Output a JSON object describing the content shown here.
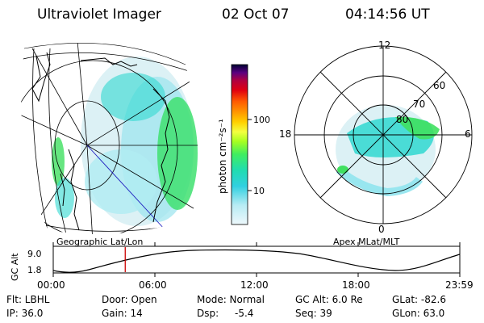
{
  "header": {
    "instrument": "Ultraviolet Imager",
    "date": "02 Oct 07",
    "time": "04:14:56 UT"
  },
  "geo_panel": {
    "label": "Geographic Lat/Lon"
  },
  "apex_panel": {
    "label": "Apex MLat/MLT",
    "mlt_labels": [
      "12",
      "18",
      "6",
      "0"
    ],
    "lat_labels": [
      "60",
      "70",
      "80"
    ]
  },
  "colorbar": {
    "unit_label": "photon cm⁻²s⁻¹",
    "tick_labels": [
      "100",
      "10"
    ],
    "colors": [
      "#000033",
      "#3a006a",
      "#7a0070",
      "#b00040",
      "#e00010",
      "#ff5a00",
      "#ff9900",
      "#ffd000",
      "#f4ff40",
      "#a8ff20",
      "#40ee60",
      "#20dcb0",
      "#30d0e0",
      "#90e8f0",
      "#e0f8fc"
    ]
  },
  "altitude_plot": {
    "ylabel": "GC Alt",
    "y_ticks": [
      "9.0",
      "1.8"
    ],
    "x_ticks": [
      "00:00",
      "06:00",
      "12:00",
      "18:00",
      "23:59"
    ],
    "current_time_hours": 4.25
  },
  "info": {
    "flt": "Flt: LBHL",
    "ip": "IP: 36.0",
    "door": "Door: Open",
    "gain": "Gain: 14",
    "mode": "Mode: Normal",
    "dsp": "Dsp:",
    "dsp_value": "-5.4",
    "gc_alt": "GC Alt: 6.0 Re",
    "seq": "Seq: 39",
    "glat": "GLat: -82.6",
    "glon": "GLon: 63.0"
  },
  "colors": {
    "aurora_bright": "#40e060",
    "aurora_mid": "#30d8d0",
    "aurora_faint": "#d8f0f4",
    "marker": "#cc0000"
  }
}
